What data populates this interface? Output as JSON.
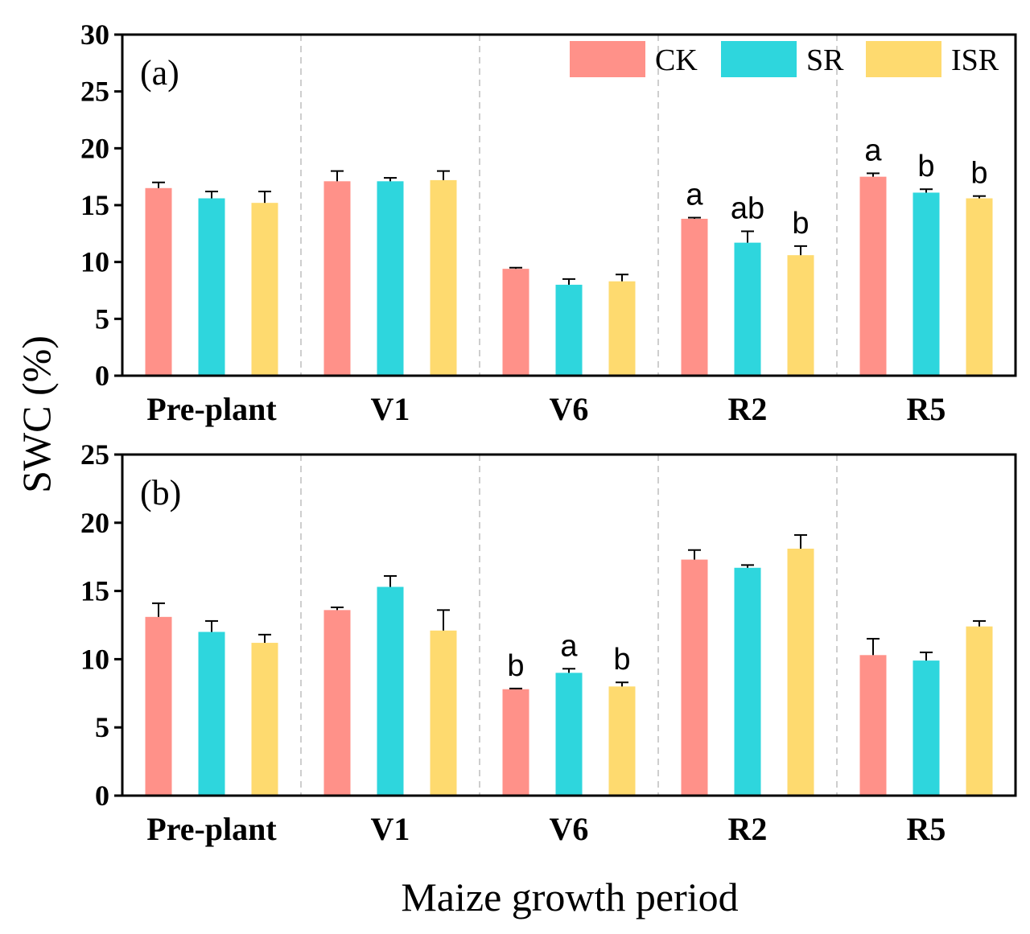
{
  "chart_data": [
    {
      "type": "bar",
      "panel_label": "(a)",
      "categories": [
        "Pre-plant",
        "V1",
        "V6",
        "R2",
        "R5"
      ],
      "ylim": [
        0,
        30
      ],
      "yticks": [
        0,
        5,
        10,
        15,
        20,
        25,
        30
      ],
      "grid": false,
      "legend_position": "top-right",
      "series": [
        {
          "name": "CK",
          "color": "#FF9189",
          "values": [
            16.5,
            17.1,
            9.4,
            13.8,
            17.5
          ],
          "errors": [
            0.5,
            0.9,
            0.1,
            0.1,
            0.3
          ]
        },
        {
          "name": "SR",
          "color": "#2ED6DD",
          "values": [
            15.6,
            17.1,
            8.0,
            11.7,
            16.1
          ],
          "errors": [
            0.6,
            0.3,
            0.5,
            1.0,
            0.3
          ]
        },
        {
          "name": "ISR",
          "color": "#FEDA6F",
          "values": [
            15.2,
            17.2,
            8.3,
            10.6,
            15.6
          ],
          "errors": [
            1.0,
            0.8,
            0.6,
            0.8,
            0.2
          ]
        }
      ],
      "significance": [
        [
          "",
          "",
          "",
          "a",
          "a"
        ],
        [
          "",
          "",
          "",
          "ab",
          "b"
        ],
        [
          "",
          "",
          "",
          "b",
          "b"
        ]
      ]
    },
    {
      "type": "bar",
      "panel_label": "(b)",
      "categories": [
        "Pre-plant",
        "V1",
        "V6",
        "R2",
        "R5"
      ],
      "ylim": [
        0,
        25
      ],
      "yticks": [
        0,
        5,
        10,
        15,
        20,
        25
      ],
      "grid": false,
      "series": [
        {
          "name": "CK",
          "color": "#FF9189",
          "values": [
            13.1,
            13.6,
            7.8,
            17.3,
            10.3
          ],
          "errors": [
            1.0,
            0.2,
            0.05,
            0.7,
            1.2
          ]
        },
        {
          "name": "SR",
          "color": "#2ED6DD",
          "values": [
            12.0,
            15.3,
            9.0,
            16.7,
            9.9
          ],
          "errors": [
            0.8,
            0.8,
            0.3,
            0.2,
            0.6
          ]
        },
        {
          "name": "ISR",
          "color": "#FEDA6F",
          "values": [
            11.2,
            12.1,
            8.0,
            18.1,
            12.4
          ],
          "errors": [
            0.6,
            1.5,
            0.3,
            1.0,
            0.4
          ]
        }
      ],
      "significance": [
        [
          "",
          "",
          "b",
          "",
          ""
        ],
        [
          "",
          "",
          "a",
          "",
          ""
        ],
        [
          "",
          "",
          "b",
          "",
          ""
        ]
      ]
    }
  ],
  "ylabel": "SWC (%)",
  "xlabel": "Maize growth period",
  "legend": [
    {
      "name": "CK",
      "color": "#FF9189"
    },
    {
      "name": "SR",
      "color": "#2ED6DD"
    },
    {
      "name": "ISR",
      "color": "#FEDA6F"
    }
  ]
}
